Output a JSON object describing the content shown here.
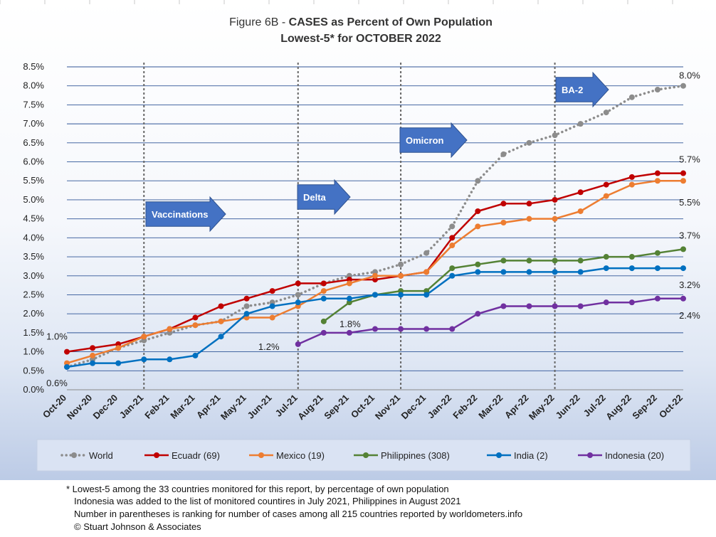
{
  "chart_data": {
    "type": "line",
    "title": "Figure 6B - CASES as Percent of Own Population",
    "title_prefix": "Figure 6B - ",
    "title_bold": "CASES as Percent of Own Population",
    "subtitle": "Lowest-5* for OCTOBER 2022",
    "x": [
      "Oct-20",
      "Nov-20",
      "Dec-20",
      "Jan-21",
      "Feb-21",
      "Mar-21",
      "Apr-21",
      "May-21",
      "Jun-21",
      "Jul-21",
      "Aug-21",
      "Sep-21",
      "Oct-21",
      "Nov-21",
      "Dec-21",
      "Jan-22",
      "Feb-22",
      "Mar-22",
      "Apr-22",
      "May-22",
      "Jun-22",
      "Jul-22",
      "Aug-22",
      "Sep-22",
      "Oct-22"
    ],
    "yticks": [
      "0.0%",
      "0.5%",
      "1.0%",
      "1.5%",
      "2.0%",
      "2.5%",
      "3.0%",
      "3.5%",
      "4.0%",
      "4.5%",
      "5.0%",
      "5.5%",
      "6.0%",
      "6.5%",
      "7.0%",
      "7.5%",
      "8.0%",
      "8.5%"
    ],
    "ylim": [
      0,
      8.5
    ],
    "grid": true,
    "legend_position": "bottom",
    "series": [
      {
        "name": "World",
        "color": "#8c8c8c",
        "dash": "dotted",
        "values": [
          0.6,
          0.8,
          1.1,
          1.3,
          1.5,
          1.7,
          1.8,
          2.2,
          2.3,
          2.5,
          2.8,
          3.0,
          3.1,
          3.3,
          3.6,
          4.3,
          5.5,
          6.2,
          6.5,
          6.7,
          7.0,
          7.3,
          7.7,
          7.9,
          8.0
        ]
      },
      {
        "name": "Ecuadr (69)",
        "color": "#c00000",
        "dash": "solid",
        "values": [
          1.0,
          1.1,
          1.2,
          1.4,
          1.6,
          1.9,
          2.2,
          2.4,
          2.6,
          2.8,
          2.8,
          2.9,
          2.9,
          3.0,
          3.1,
          4.0,
          4.7,
          4.9,
          4.9,
          5.0,
          5.2,
          5.4,
          5.6,
          5.7,
          5.7
        ]
      },
      {
        "name": "Mexico (19)",
        "color": "#ed7d31",
        "dash": "solid",
        "values": [
          0.7,
          0.9,
          1.1,
          1.4,
          1.6,
          1.7,
          1.8,
          1.9,
          1.9,
          2.2,
          2.6,
          2.8,
          3.0,
          3.0,
          3.1,
          3.8,
          4.3,
          4.4,
          4.5,
          4.5,
          4.7,
          5.1,
          5.4,
          5.5,
          5.5
        ]
      },
      {
        "name": "Philippines (308)",
        "color": "#548235",
        "dash": "solid",
        "values": [
          null,
          null,
          null,
          null,
          null,
          null,
          null,
          null,
          null,
          null,
          1.8,
          2.3,
          2.5,
          2.6,
          2.6,
          3.2,
          3.3,
          3.4,
          3.4,
          3.4,
          3.4,
          3.5,
          3.5,
          3.6,
          3.7
        ]
      },
      {
        "name": "India (2)",
        "color": "#0070c0",
        "dash": "solid",
        "values": [
          0.6,
          0.7,
          0.7,
          0.8,
          0.8,
          0.9,
          1.4,
          2.0,
          2.2,
          2.3,
          2.4,
          2.4,
          2.5,
          2.5,
          2.5,
          3.0,
          3.1,
          3.1,
          3.1,
          3.1,
          3.1,
          3.2,
          3.2,
          3.2,
          3.2
        ]
      },
      {
        "name": "Indonesia (20)",
        "color": "#7030a0",
        "dash": "solid",
        "values": [
          null,
          null,
          null,
          null,
          null,
          null,
          null,
          null,
          null,
          1.2,
          1.5,
          1.5,
          1.6,
          1.6,
          1.6,
          1.6,
          2.0,
          2.2,
          2.2,
          2.2,
          2.2,
          2.3,
          2.3,
          2.4,
          2.4
        ]
      }
    ],
    "data_labels": [
      {
        "text": "1.0%",
        "x": "Oct-20",
        "y": 1.0
      },
      {
        "text": "0.6%",
        "x": "Oct-20",
        "y": 0.6
      },
      {
        "text": "1.2%",
        "x": "Jul-21",
        "y": 1.2
      },
      {
        "text": "1.8%",
        "x": "Aug-21",
        "y": 1.8
      },
      {
        "text": "8.0%",
        "x": "Oct-22",
        "y": 8.0
      },
      {
        "text": "5.7%",
        "x": "Oct-22",
        "y": 5.7
      },
      {
        "text": "5.5%",
        "x": "Oct-22",
        "y": 5.5
      },
      {
        "text": "3.7%",
        "x": "Oct-22",
        "y": 3.7
      },
      {
        "text": "3.2%",
        "x": "Oct-22",
        "y": 3.2
      },
      {
        "text": "2.4%",
        "x": "Oct-22",
        "y": 2.4
      }
    ],
    "annotations": [
      {
        "text": "Vaccinations",
        "x": "Jan-21"
      },
      {
        "text": "Delta",
        "x": "Jul-21"
      },
      {
        "text": "Omicron",
        "x": "Nov-21"
      },
      {
        "text": "BA-2",
        "x": "May-22"
      }
    ],
    "annotation_color": "#4472c4"
  },
  "footnote": {
    "line1": "* Lowest-5 among the 33 countries monitored for this report, by percentage of own population",
    "line2": "Indonesia was added to the list of monitored countires in July 2021, Philippines in August 2021",
    "line3": "Number in parentheses is ranking for number of cases among all 215 countries reported by worldometers.info",
    "line4": "© Stuart Johnson & Associates"
  }
}
